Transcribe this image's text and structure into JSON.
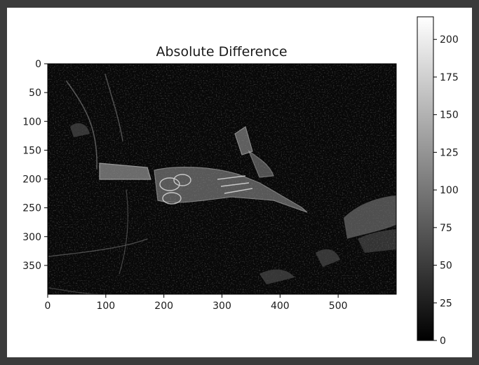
{
  "chart_data": {
    "type": "heatmap",
    "title": "Absolute Difference",
    "xlabel": "",
    "ylabel": "",
    "image_size": [
      600,
      400
    ],
    "xlim": [
      0,
      600
    ],
    "ylim": [
      400,
      0
    ],
    "x_ticks": [
      0,
      100,
      200,
      300,
      400,
      500
    ],
    "y_ticks": [
      0,
      50,
      100,
      150,
      200,
      250,
      300,
      350
    ],
    "colormap": "gray",
    "colorbar": {
      "range": [
        0,
        215
      ],
      "ticks": [
        0,
        25,
        50,
        75,
        100,
        125,
        150,
        175,
        200
      ]
    },
    "grid": false,
    "description_colors": {
      "low": "#000000",
      "high": "#ffffff"
    }
  }
}
